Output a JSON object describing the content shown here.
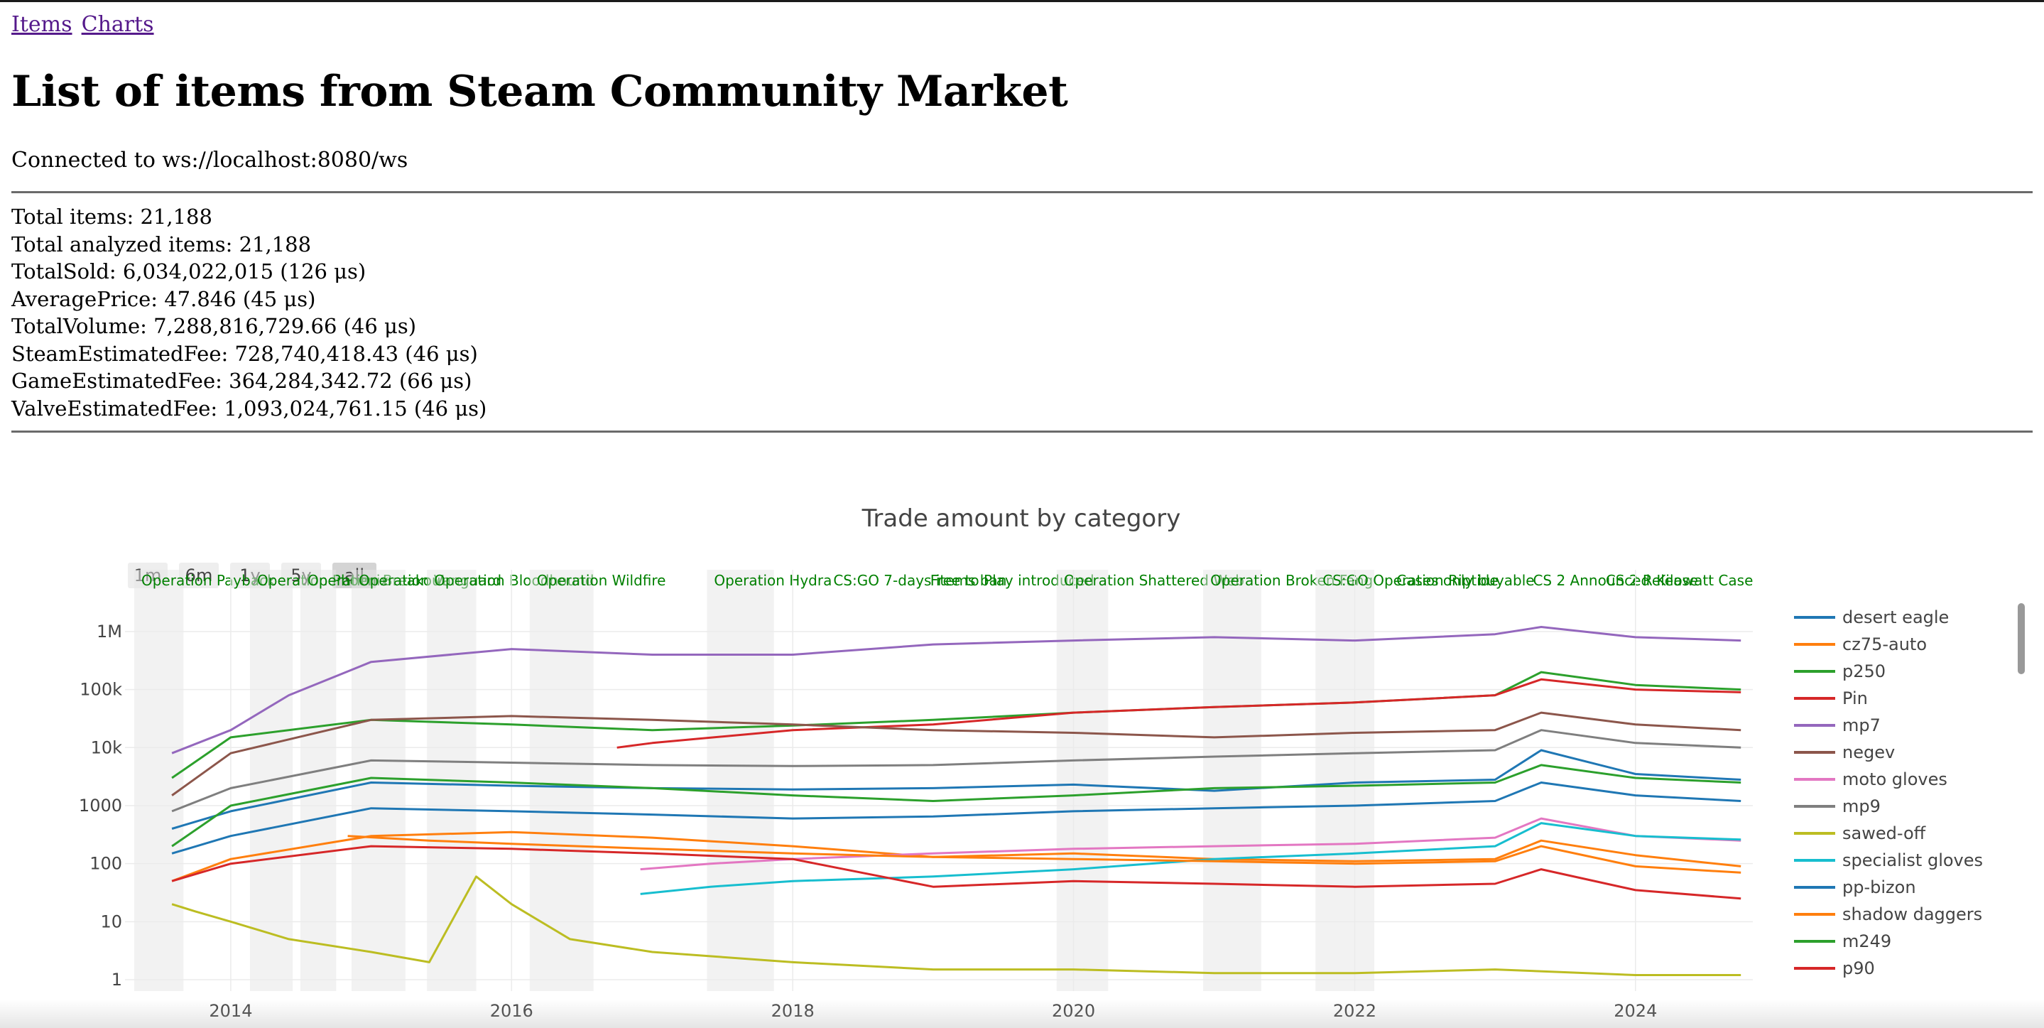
{
  "nav": {
    "links": [
      {
        "label": "Items"
      },
      {
        "label": "Charts"
      }
    ]
  },
  "page_title": "List of items from Steam Community Market",
  "status": "Connected to ws://localhost:8080/ws",
  "stats": [
    "Total items: 21,188",
    "Total analyzed items: 21,188",
    "TotalSold: 6,034,022,015 (126 μs)",
    "AveragePrice: 47.846 (45 μs)",
    "TotalVolume: 7,288,816,729.66 (46 μs)",
    "SteamEstimatedFee: 728,740,418.43 (46 μs)",
    "GameEstimatedFee: 364,284,342.72 (66 μs)",
    "ValveEstimatedFee: 1,093,024,761.15 (46 μs)"
  ],
  "chart_data": {
    "type": "line",
    "title": "Trade amount by category",
    "xlabel": "",
    "ylabel": "",
    "yscale": "log",
    "xlim": [
      "2013-04-01",
      "2024-11-01"
    ],
    "ylim": [
      1,
      3000000
    ],
    "x_ticks": [
      "2014",
      "2016",
      "2018",
      "2020",
      "2022",
      "2024"
    ],
    "y_ticks": [
      "1",
      "10",
      "100",
      "1000",
      "10k",
      "100k",
      "1M"
    ],
    "range_buttons": [
      "1m",
      "6m",
      "1y",
      "5y",
      "all"
    ],
    "active_range": "all",
    "legend_position": "right",
    "grid": true,
    "annotations": [
      {
        "text": "Operation Payback",
        "start": "2013-04-25",
        "end": "2013-08-31"
      },
      {
        "text": "Operation Phoenix",
        "start": "2014-02-20",
        "end": "2014-06-11"
      },
      {
        "text": "Operation Breakout",
        "start": "2014-07-01",
        "end": "2014-10-02"
      },
      {
        "text": "Operation Vanguard",
        "start": "2014-11-11",
        "end": "2015-03-31"
      },
      {
        "text": "Operation Bloodhound",
        "start": "2015-05-26",
        "end": "2015-10-01"
      },
      {
        "text": "Operation Wildfire",
        "start": "2016-02-17",
        "end": "2016-08-01"
      },
      {
        "text": "Operation Hydra",
        "start": "2017-05-23",
        "end": "2017-11-13"
      },
      {
        "text": "CS:GO 7-days items ban",
        "start": "2018-03-29",
        "end": "2018-03-29"
      },
      {
        "text": "Free to Play introduced",
        "start": "2018-12-06",
        "end": "2018-12-06"
      },
      {
        "text": "Operation Shattered Web",
        "start": "2019-11-18",
        "end": "2020-03-31"
      },
      {
        "text": "Operation Broken Fang",
        "start": "2020-12-03",
        "end": "2021-05-03"
      },
      {
        "text": "CS:GO Operation Riptide",
        "start": "2021-09-21",
        "end": "2022-02-21"
      },
      {
        "text": "Cases only buyable",
        "start": "2022-04-01",
        "end": "2022-04-01"
      },
      {
        "text": "CS 2 Announced",
        "start": "2023-03-22",
        "end": "2023-03-22"
      },
      {
        "text": "CS 2 Release",
        "start": "2023-09-27",
        "end": "2023-09-27"
      },
      {
        "text": "Kilowatt Case",
        "start": "2024-02-06",
        "end": "2024-02-06"
      }
    ],
    "series": [
      {
        "name": "desert eagle",
        "color": "#1f77b4",
        "x": [
          "2013-08-01",
          "2014-01-01",
          "2015-01-01",
          "2016-01-01",
          "2017-01-01",
          "2018-01-01",
          "2019-01-01",
          "2020-01-01",
          "2021-01-01",
          "2022-01-01",
          "2023-01-01",
          "2023-05-01",
          "2024-01-01",
          "2024-10-01"
        ],
        "y": [
          400,
          800,
          2500,
          2200,
          2000,
          1900,
          2000,
          2300,
          1800,
          2500,
          2800,
          9000,
          3500,
          2800
        ]
      },
      {
        "name": "cz75-auto",
        "color": "#ff7f0e",
        "x": [
          "2013-08-01",
          "2014-01-01",
          "2015-01-01",
          "2016-01-01",
          "2017-01-01",
          "2018-01-01",
          "2019-01-01",
          "2020-01-01",
          "2021-01-01",
          "2022-01-01",
          "2023-01-01",
          "2023-05-01",
          "2024-01-01",
          "2024-10-01"
        ],
        "y": [
          50,
          120,
          300,
          350,
          280,
          200,
          130,
          150,
          120,
          110,
          120,
          250,
          140,
          90
        ]
      },
      {
        "name": "p250",
        "color": "#2ca02c",
        "x": [
          "2013-08-01",
          "2014-01-01",
          "2015-01-01",
          "2016-01-01",
          "2017-01-01",
          "2018-01-01",
          "2019-01-01",
          "2020-01-01",
          "2021-01-01",
          "2022-01-01",
          "2023-01-01",
          "2023-05-01",
          "2024-01-01",
          "2024-10-01"
        ],
        "y": [
          3000,
          15000,
          30000,
          25000,
          20000,
          24000,
          30000,
          40000,
          50000,
          60000,
          80000,
          200000,
          120000,
          100000
        ]
      },
      {
        "name": "Pin",
        "color": "#d62728",
        "x": [
          "2016-10-01",
          "2017-01-01",
          "2018-01-01",
          "2019-01-01",
          "2020-01-01",
          "2021-01-01",
          "2022-01-01",
          "2023-01-01",
          "2023-05-01",
          "2024-01-01",
          "2024-10-01"
        ],
        "y": [
          10000,
          12000,
          20000,
          25000,
          40000,
          50000,
          60000,
          80000,
          150000,
          100000,
          90000
        ]
      },
      {
        "name": "mp7",
        "color": "#9467bd",
        "x": [
          "2013-08-01",
          "2014-01-01",
          "2014-06-01",
          "2015-01-01",
          "2016-01-01",
          "2017-01-01",
          "2018-01-01",
          "2019-01-01",
          "2020-01-01",
          "2021-01-01",
          "2022-01-01",
          "2023-01-01",
          "2023-05-01",
          "2024-01-01",
          "2024-10-01"
        ],
        "y": [
          8000,
          20000,
          80000,
          300000,
          500000,
          400000,
          400000,
          600000,
          700000,
          800000,
          700000,
          900000,
          1200000,
          800000,
          700000
        ]
      },
      {
        "name": "negev",
        "color": "#8c564b",
        "x": [
          "2013-08-01",
          "2014-01-01",
          "2015-01-01",
          "2016-01-01",
          "2017-01-01",
          "2018-01-01",
          "2019-01-01",
          "2020-01-01",
          "2021-01-01",
          "2022-01-01",
          "2023-01-01",
          "2023-05-01",
          "2024-01-01",
          "2024-10-01"
        ],
        "y": [
          1500,
          8000,
          30000,
          35000,
          30000,
          25000,
          20000,
          18000,
          15000,
          18000,
          20000,
          40000,
          25000,
          20000
        ]
      },
      {
        "name": "moto gloves",
        "color": "#e377c2",
        "x": [
          "2016-12-01",
          "2017-06-01",
          "2018-01-01",
          "2019-01-01",
          "2020-01-01",
          "2021-01-01",
          "2022-01-01",
          "2023-01-01",
          "2023-05-01",
          "2024-01-01",
          "2024-10-01"
        ],
        "y": [
          80,
          100,
          120,
          150,
          180,
          200,
          220,
          280,
          600,
          300,
          250
        ]
      },
      {
        "name": "mp9",
        "color": "#7f7f7f",
        "x": [
          "2013-08-01",
          "2014-01-01",
          "2015-01-01",
          "2016-01-01",
          "2017-01-01",
          "2018-01-01",
          "2019-01-01",
          "2020-01-01",
          "2021-01-01",
          "2022-01-01",
          "2023-01-01",
          "2023-05-01",
          "2024-01-01",
          "2024-10-01"
        ],
        "y": [
          800,
          2000,
          6000,
          5500,
          5000,
          4800,
          5000,
          6000,
          7000,
          8000,
          9000,
          20000,
          12000,
          10000
        ]
      },
      {
        "name": "sawed-off",
        "color": "#bcbd22",
        "x": [
          "2013-08-01",
          "2013-10-01",
          "2014-01-01",
          "2014-06-01",
          "2015-01-01",
          "2015-06-01",
          "2015-10-01",
          "2016-01-01",
          "2016-06-01",
          "2017-01-01",
          "2018-01-01",
          "2019-01-01",
          "2020-01-01",
          "2021-01-01",
          "2022-01-01",
          "2023-01-01",
          "2024-01-01",
          "2024-10-01"
        ],
        "y": [
          20,
          15,
          10,
          5,
          3,
          2,
          60,
          20,
          5,
          3,
          2,
          1.5,
          1.5,
          1.3,
          1.3,
          1.5,
          1.2,
          1.2
        ]
      },
      {
        "name": "specialist gloves",
        "color": "#17becf",
        "x": [
          "2016-12-01",
          "2017-06-01",
          "2018-01-01",
          "2019-01-01",
          "2020-01-01",
          "2021-01-01",
          "2022-01-01",
          "2023-01-01",
          "2023-05-01",
          "2024-01-01",
          "2024-10-01"
        ],
        "y": [
          30,
          40,
          50,
          60,
          80,
          120,
          150,
          200,
          500,
          300,
          260
        ]
      },
      {
        "name": "pp-bizon",
        "color": "#1f77b4",
        "x": [
          "2013-08-01",
          "2014-01-01",
          "2015-01-01",
          "2016-01-01",
          "2017-01-01",
          "2018-01-01",
          "2019-01-01",
          "2020-01-01",
          "2021-01-01",
          "2022-01-01",
          "2023-01-01",
          "2023-05-01",
          "2024-01-01",
          "2024-10-01"
        ],
        "y": [
          150,
          300,
          900,
          800,
          700,
          600,
          650,
          800,
          900,
          1000,
          1200,
          2500,
          1500,
          1200
        ]
      },
      {
        "name": "shadow daggers",
        "color": "#ff7f0e",
        "x": [
          "2014-11-01",
          "2015-06-01",
          "2016-01-01",
          "2017-01-01",
          "2018-01-01",
          "2019-01-01",
          "2020-01-01",
          "2021-01-01",
          "2022-01-01",
          "2023-01-01",
          "2023-05-01",
          "2024-01-01",
          "2024-10-01"
        ],
        "y": [
          300,
          250,
          220,
          180,
          150,
          130,
          120,
          110,
          100,
          110,
          200,
          90,
          70
        ]
      },
      {
        "name": "m249",
        "color": "#2ca02c",
        "x": [
          "2013-08-01",
          "2014-01-01",
          "2015-01-01",
          "2016-01-01",
          "2017-01-01",
          "2018-01-01",
          "2019-01-01",
          "2020-01-01",
          "2021-01-01",
          "2022-01-01",
          "2023-01-01",
          "2023-05-01",
          "2024-01-01",
          "2024-10-01"
        ],
        "y": [
          200,
          1000,
          3000,
          2500,
          2000,
          1500,
          1200,
          1500,
          2000,
          2200,
          2500,
          5000,
          3000,
          2500
        ]
      },
      {
        "name": "p90",
        "color": "#d62728",
        "x": [
          "2013-08-01",
          "2014-01-01",
          "2015-01-01",
          "2016-01-01",
          "2017-01-01",
          "2018-01-01",
          "2019-01-01",
          "2020-01-01",
          "2021-01-01",
          "2022-01-01",
          "2023-01-01",
          "2023-05-01",
          "2024-01-01",
          "2024-10-01"
        ],
        "y": [
          50,
          100,
          200,
          180,
          150,
          120,
          40,
          50,
          45,
          40,
          45,
          80,
          35,
          25
        ]
      }
    ]
  }
}
